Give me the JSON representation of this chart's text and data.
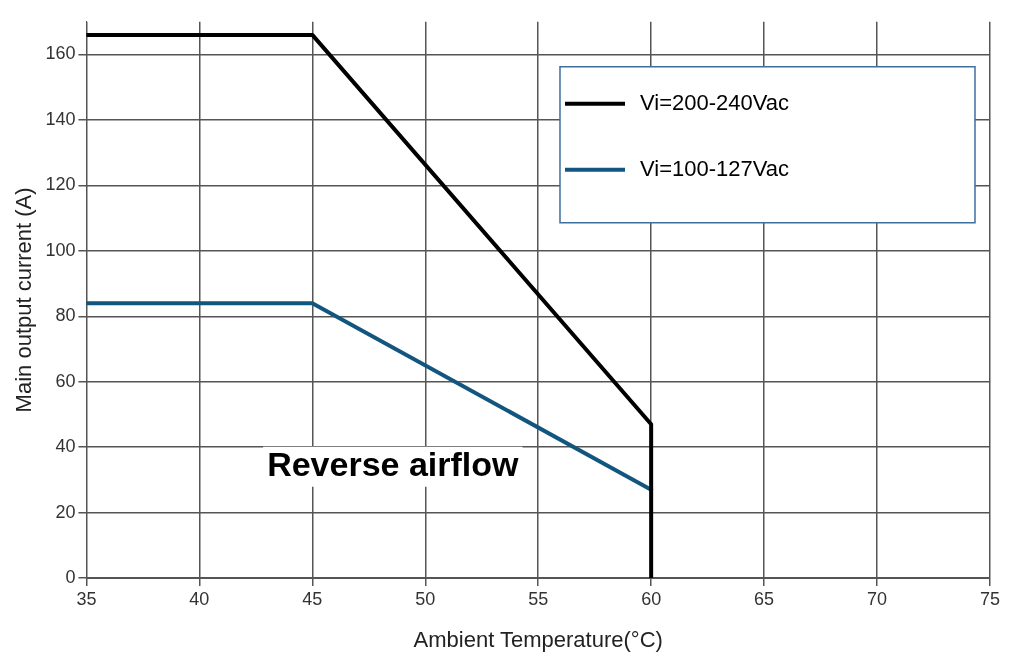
{
  "chart_data": {
    "type": "line",
    "xlabel": "Ambient Temperature(°C)",
    "ylabel": "Main output current (A)",
    "xlim": [
      35,
      75
    ],
    "xticks": [
      35,
      40,
      45,
      50,
      55,
      60,
      65,
      70,
      75
    ],
    "ylim": [
      0,
      170
    ],
    "yticks": [
      0,
      20,
      40,
      60,
      80,
      100,
      120,
      140,
      160
    ],
    "grid": true,
    "legend": "top right",
    "marker": "none",
    "line_style": "solid",
    "annotations": [
      "Reverse airflow"
    ],
    "series": [
      {
        "name": "Vi=200-240Vac",
        "color": "#000000",
        "x": [
          35,
          45,
          60,
          60
        ],
        "values": [
          166,
          166,
          47,
          0
        ]
      },
      {
        "name": "Vi=100-127Vac",
        "color": "#12557f",
        "x": [
          35,
          45,
          60
        ],
        "values": [
          84,
          84,
          27
        ]
      }
    ]
  }
}
